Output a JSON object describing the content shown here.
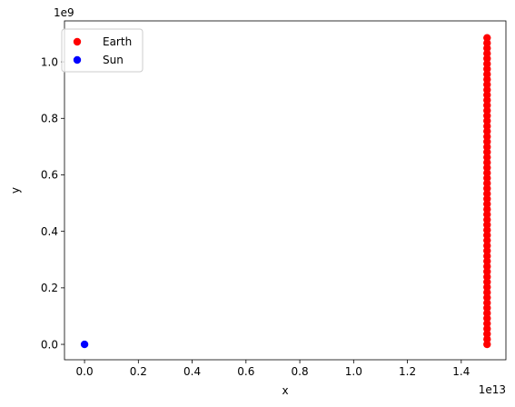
{
  "chart_data": {
    "type": "scatter",
    "xlabel": "x",
    "ylabel": "y",
    "x_offset_text": "1e13",
    "y_offset_text": "1e9",
    "x_multiplier": 10000000000000.0,
    "y_multiplier": 1000000000.0,
    "xlim": [
      -0.0745,
      1.566
    ],
    "ylim": [
      -0.0545,
      1.145
    ],
    "x_ticks": [
      0.0,
      0.2,
      0.4,
      0.6,
      0.8,
      1.0,
      1.2,
      1.4
    ],
    "x_tick_labels": [
      "0.0",
      "0.2",
      "0.4",
      "0.6",
      "0.8",
      "1.0",
      "1.2",
      "1.4"
    ],
    "y_ticks": [
      0.0,
      0.2,
      0.4,
      0.6,
      0.8,
      1.0
    ],
    "y_tick_labels": [
      "0.0",
      "0.2",
      "0.4",
      "0.6",
      "0.8",
      "1.0"
    ],
    "grid": false,
    "legend_position": "top-left",
    "series": [
      {
        "name": "Earth",
        "color": "#ff0000",
        "x": 1.496,
        "y_range": [
          0.0,
          1.085
        ],
        "n_points": 60
      },
      {
        "name": "Sun",
        "color": "#0000ff",
        "points": [
          [
            0.0,
            0.0
          ]
        ]
      }
    ]
  }
}
